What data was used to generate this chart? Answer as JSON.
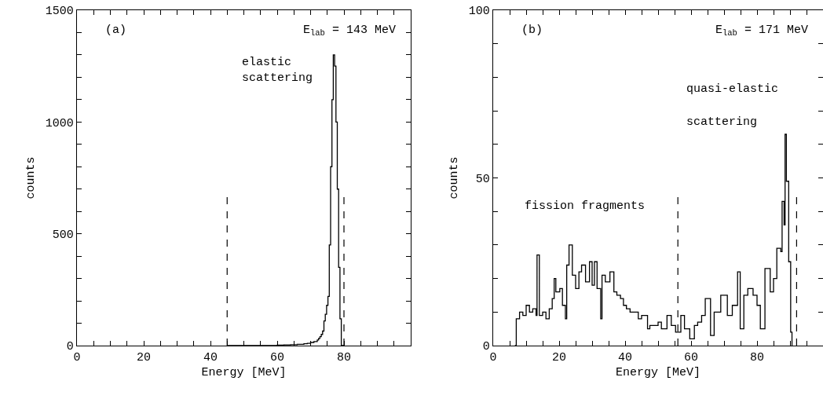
{
  "chart_data": [
    {
      "type": "step",
      "xlabel": "Energy [MeV]",
      "ylabel": "counts",
      "annotations": [
        "(a)",
        "E$_{lab}$ = 143 MeV",
        "elastic\nscattering"
      ],
      "x": [
        45,
        50,
        55,
        60,
        62,
        64,
        66,
        68,
        69,
        70,
        71,
        72,
        72.4,
        72.8,
        73.2,
        73.6,
        74,
        74.4,
        74.8,
        75.2,
        75.6,
        76,
        76.4,
        76.8,
        77.2,
        77.6,
        78,
        78.4,
        78.8,
        79.2,
        80
      ],
      "values": [
        0,
        0,
        0,
        2,
        3,
        4,
        6,
        8,
        10,
        14,
        18,
        25,
        32,
        40,
        50,
        65,
        110,
        140,
        180,
        220,
        450,
        800,
        1100,
        1300,
        1250,
        1000,
        700,
        350,
        120,
        0,
        0
      ],
      "color": "#000000",
      "xlim": [
        0,
        100
      ],
      "ylim": [
        0,
        1500
      ],
      "xticks": [
        0,
        {
          "value": 5,
          "label": null
        },
        {
          "value": 10,
          "label": null
        },
        {
          "value": 15,
          "label": null
        },
        20,
        {
          "value": 25,
          "label": null
        },
        {
          "value": 30,
          "label": null
        },
        {
          "value": 35,
          "label": null
        },
        40,
        {
          "value": 45,
          "label": null
        },
        {
          "value": 50,
          "label": null
        },
        {
          "value": 55,
          "label": null
        },
        60,
        {
          "value": 65,
          "label": null
        },
        {
          "value": 70,
          "label": null
        },
        {
          "value": 75,
          "label": null
        },
        80,
        {
          "value": 85,
          "label": null
        },
        {
          "value": 90,
          "label": null
        },
        {
          "value": 95,
          "label": null
        }
      ],
      "yticks": [
        0,
        {
          "value": 100,
          "label": null
        },
        {
          "value": 200,
          "label": null
        },
        {
          "value": 300,
          "label": null
        },
        {
          "value": 400,
          "label": null
        },
        500,
        {
          "value": 600,
          "label": null
        },
        {
          "value": 700,
          "label": null
        },
        {
          "value": 800,
          "label": null
        },
        {
          "value": 900,
          "label": null
        },
        1000,
        {
          "value": 1100,
          "label": null
        },
        {
          "value": 1200,
          "label": null
        },
        {
          "value": 1300,
          "label": null
        },
        {
          "value": 1400,
          "label": null
        },
        1500
      ],
      "ref_lines": [
        {
          "axis": "x",
          "value": 45,
          "line_style": "dashed"
        },
        {
          "axis": "x",
          "value": 80,
          "line_style": "dashed"
        }
      ],
      "grid": false,
      "line_style": "solid",
      "marker": "none"
    },
    {
      "type": "step",
      "xlabel": "Energy [MeV]",
      "ylabel": "counts",
      "annotations": [
        "(b)",
        "E$_{lab}$ = 171 MeV",
        "fission fragments",
        "quasi-elastic",
        "scattering"
      ],
      "x": [
        6.6,
        7,
        8,
        9,
        10,
        11,
        12,
        13,
        13.3,
        14,
        15,
        16,
        17,
        17.9,
        18.5,
        19,
        20.2,
        21,
        21.9,
        22.3,
        23,
        24,
        25,
        26,
        26.8,
        28,
        29.2,
        30,
        30.7,
        31.5,
        32.6,
        33,
        34,
        35.4,
        36.6,
        37.5,
        38.6,
        39.5,
        40.4,
        41.5,
        42.9,
        44,
        45,
        46.8,
        47.5,
        48.4,
        50,
        51,
        52.7,
        54,
        55.3,
        56.9,
        58,
        59.6,
        61,
        62,
        63.2,
        64.3,
        65.9,
        67,
        69,
        71,
        72.5,
        74.1,
        74.9,
        76,
        77.2,
        78.8,
        80,
        81,
        82.4,
        84,
        85,
        86,
        87.2,
        87.6,
        88.2,
        88.5,
        88.9,
        89.6,
        90.2,
        90.6
      ],
      "values": [
        0,
        8,
        10,
        9,
        12,
        10,
        11,
        9,
        27,
        9,
        10,
        8,
        11,
        14,
        20,
        16,
        17,
        12,
        8,
        24,
        30,
        21,
        17,
        22,
        24,
        19,
        25,
        18,
        25,
        17,
        8,
        21,
        19,
        22,
        16,
        15,
        14,
        12,
        11,
        10,
        10,
        8,
        9,
        5,
        6,
        6,
        7,
        5,
        9,
        6,
        4,
        9,
        5,
        2,
        6,
        7,
        9,
        14,
        3,
        10,
        15,
        9,
        12,
        22,
        5,
        15,
        17,
        15,
        12,
        5,
        23,
        16,
        20,
        29,
        28,
        43,
        36,
        63,
        49,
        25,
        4,
        0
      ],
      "color": "#000000",
      "xlim": [
        0,
        100
      ],
      "ylim": [
        0,
        100
      ],
      "xticks": [
        0,
        {
          "value": 5,
          "label": null
        },
        {
          "value": 10,
          "label": null
        },
        {
          "value": 15,
          "label": null
        },
        20,
        {
          "value": 25,
          "label": null
        },
        {
          "value": 30,
          "label": null
        },
        {
          "value": 35,
          "label": null
        },
        40,
        {
          "value": 45,
          "label": null
        },
        {
          "value": 50,
          "label": null
        },
        {
          "value": 55,
          "label": null
        },
        60,
        {
          "value": 65,
          "label": null
        },
        {
          "value": 70,
          "label": null
        },
        {
          "value": 75,
          "label": null
        },
        80,
        {
          "value": 85,
          "label": null
        },
        {
          "value": 90,
          "label": null
        },
        {
          "value": 95,
          "label": null
        }
      ],
      "yticks": [
        0,
        {
          "value": 10,
          "label": null
        },
        {
          "value": 20,
          "label": null
        },
        {
          "value": 30,
          "label": null
        },
        {
          "value": 40,
          "label": null
        },
        50,
        {
          "value": 60,
          "label": null
        },
        {
          "value": 70,
          "label": null
        },
        {
          "value": 80,
          "label": null
        },
        {
          "value": 90,
          "label": null
        },
        100
      ],
      "ref_lines": [
        {
          "axis": "x",
          "value": 56,
          "line_style": "dashed"
        },
        {
          "axis": "x",
          "value": 92,
          "line_style": "dashed"
        }
      ],
      "grid": false,
      "line_style": "solid",
      "marker": "none"
    }
  ]
}
